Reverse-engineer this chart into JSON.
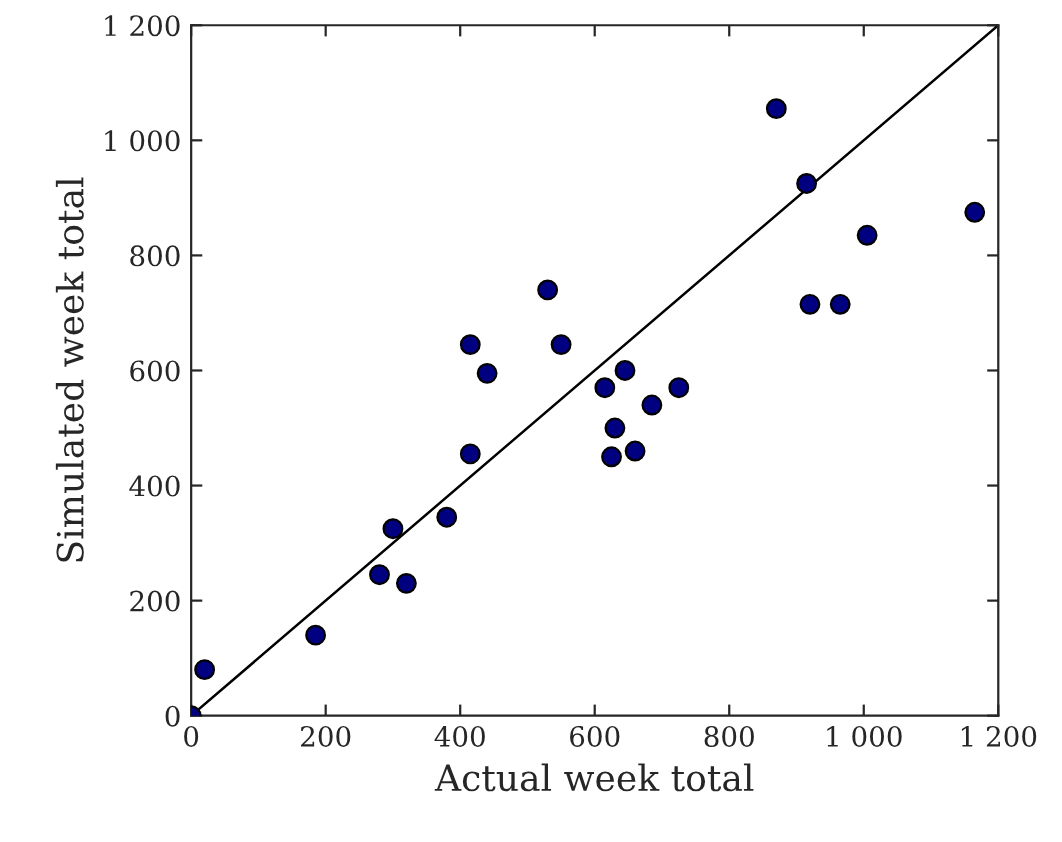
{
  "chart_data": {
    "type": "scatter",
    "xlabel": "Actual week total",
    "ylabel": "Simulated week total",
    "series": [
      {
        "color": "#000080",
        "marker": "circle",
        "x": [
          0,
          20,
          185,
          280,
          300,
          320,
          380,
          415,
          415,
          440,
          530,
          550,
          615,
          625,
          630,
          645,
          660,
          685,
          725,
          870,
          915,
          920,
          965,
          1005,
          1165
        ],
        "values": [
          0,
          80,
          140,
          245,
          325,
          230,
          345,
          455,
          645,
          595,
          740,
          645,
          570,
          450,
          500,
          600,
          460,
          540,
          570,
          1055,
          925,
          715,
          715,
          835,
          875
        ]
      },
      {
        "type": "line",
        "color": "#000000",
        "marker": "none",
        "line_style": "solid",
        "x": [
          0,
          1200
        ],
        "values": [
          0,
          1200
        ]
      }
    ],
    "xlim": [
      0,
      1200
    ],
    "ylim": [
      0,
      1200
    ],
    "xticks": [
      0,
      200,
      400,
      600,
      800,
      {
        "value": 1000,
        "label": "1 000"
      },
      {
        "value": 1200,
        "label": "1 200"
      }
    ],
    "yticks": [
      0,
      200,
      400,
      600,
      800,
      {
        "value": 1000,
        "label": "1 000"
      },
      {
        "value": 1200,
        "label": "1 200"
      }
    ],
    "grid": false,
    "legend": false
  }
}
